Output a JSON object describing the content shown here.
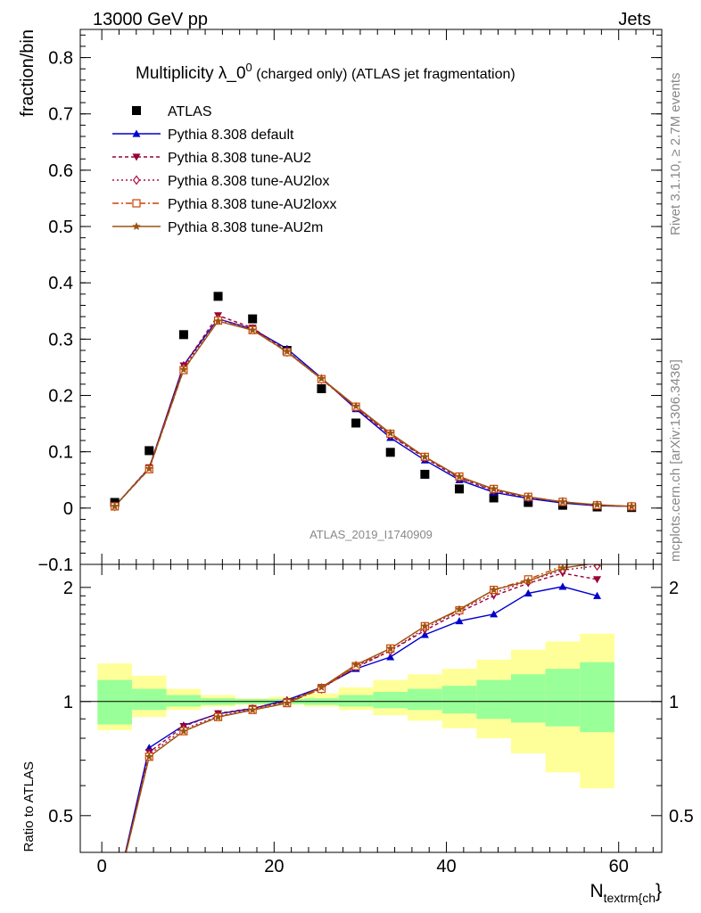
{
  "header": {
    "left": "13000 GeV pp",
    "right": "Jets"
  },
  "side": {
    "rivet": "Rivet 3.1.10, ≥ 2.7M events",
    "mcplots": "mcplots.cern.ch [arXiv:1306.3436]"
  },
  "watermark": "ATLAS_2019_I1740909",
  "chart_data": [
    {
      "type": "line",
      "title": "Multiplicity λ_0",
      "title_sup": "0",
      "title_suffix": " (charged only) (ATLAS jet fragmentation)",
      "ylabel": "fraction/bin",
      "xlabel": "",
      "xlim": [
        -2.5,
        65
      ],
      "ylim": [
        -0.1,
        0.85
      ],
      "yticks": [
        -0.1,
        0,
        0.1,
        0.2,
        0.3,
        0.4,
        0.5,
        0.6,
        0.7,
        0.8
      ],
      "ytick_labels": [
        "−0.1",
        "0",
        "0.1",
        "0.2",
        "0.3",
        "0.4",
        "0.5",
        "0.6",
        "0.7",
        "0.8"
      ],
      "x": [
        1.5,
        5.5,
        9.5,
        13.5,
        17.5,
        21.5,
        25.5,
        29.5,
        33.5,
        37.5,
        41.5,
        45.5,
        49.5,
        53.5,
        57.5,
        61.5
      ],
      "series": [
        {
          "name": "ATLAS",
          "color": "#000000",
          "marker": "square",
          "dash": "none",
          "values": [
            0.01,
            0.102,
            0.308,
            0.376,
            0.336,
            0.28,
            0.212,
            0.151,
            0.099,
            0.06,
            0.034,
            0.018,
            0.01,
            0.005,
            0.002,
            0.001
          ]
        },
        {
          "name": "Pythia 8.308 default",
          "color": "#0000cc",
          "marker": "triangle",
          "dash": "none",
          "values": [
            0.003,
            0.071,
            0.254,
            0.336,
            0.318,
            0.283,
            0.231,
            0.176,
            0.125,
            0.085,
            0.05,
            0.028,
            0.017,
            0.009,
            0.004,
            0.003
          ]
        },
        {
          "name": "Pythia 8.308 tune-AU2",
          "color": "#990033",
          "marker": "triangledown",
          "dash": "4,3",
          "values": [
            0.003,
            0.072,
            0.253,
            0.342,
            0.32,
            0.279,
            0.229,
            0.178,
            0.129,
            0.089,
            0.053,
            0.031,
            0.019,
            0.011,
            0.005,
            0.003
          ]
        },
        {
          "name": "Pythia 8.308 tune-AU2lox",
          "color": "#aa1144",
          "marker": "diamond",
          "dash": "2,3",
          "values": [
            0.003,
            0.07,
            0.249,
            0.336,
            0.318,
            0.277,
            0.229,
            0.179,
            0.13,
            0.09,
            0.054,
            0.032,
            0.019,
            0.011,
            0.005,
            0.003
          ]
        },
        {
          "name": "Pythia 8.308 tune-AU2loxx",
          "color": "#cc4400",
          "marker": "squareopen",
          "dash": "7,3,2,3",
          "values": [
            0.003,
            0.069,
            0.245,
            0.333,
            0.316,
            0.277,
            0.229,
            0.18,
            0.132,
            0.091,
            0.056,
            0.034,
            0.02,
            0.011,
            0.005,
            0.003
          ]
        },
        {
          "name": "Pythia 8.308 tune-AU2m",
          "color": "#995511",
          "marker": "star",
          "dash": "none",
          "values": [
            0.003,
            0.07,
            0.246,
            0.332,
            0.316,
            0.278,
            0.23,
            0.181,
            0.133,
            0.091,
            0.056,
            0.034,
            0.02,
            0.011,
            0.006,
            0.003
          ]
        }
      ]
    },
    {
      "type": "line",
      "title": "",
      "ylabel": "Ratio to ATLAS",
      "xlabel": "N_textrm{ch}",
      "xlabel_main": "N",
      "xlabel_sub": "textrm{ch",
      "xlabel_tail": "}",
      "xlim": [
        -2.5,
        65
      ],
      "ylim": [
        0.4,
        2.3
      ],
      "xticks": [
        0,
        20,
        40,
        60
      ],
      "xtick_labels": [
        "0",
        "20",
        "40",
        "60"
      ],
      "yticks": [
        0.5,
        1,
        2
      ],
      "ytick_labels": [
        "0.5",
        "1",
        "2"
      ],
      "bins": [
        [
          -0.5,
          3.5
        ],
        [
          3.5,
          7.5
        ],
        [
          7.5,
          11.5
        ],
        [
          11.5,
          15.5
        ],
        [
          15.5,
          19.5
        ],
        [
          19.5,
          23.5
        ],
        [
          23.5,
          27.5
        ],
        [
          27.5,
          31.5
        ],
        [
          31.5,
          35.5
        ],
        [
          35.5,
          39.5
        ],
        [
          39.5,
          43.5
        ],
        [
          43.5,
          47.5
        ],
        [
          47.5,
          51.5
        ],
        [
          51.5,
          55.5
        ],
        [
          55.5,
          59.5
        ]
      ],
      "band_inner": [
        [
          0.87,
          1.14
        ],
        [
          0.95,
          1.08
        ],
        [
          0.97,
          1.04
        ],
        [
          0.98,
          1.02
        ],
        [
          0.985,
          1.015
        ],
        [
          0.985,
          1.015
        ],
        [
          0.98,
          1.02
        ],
        [
          0.97,
          1.04
        ],
        [
          0.96,
          1.06
        ],
        [
          0.95,
          1.08
        ],
        [
          0.93,
          1.1
        ],
        [
          0.9,
          1.14
        ],
        [
          0.88,
          1.18
        ],
        [
          0.86,
          1.22
        ],
        [
          0.83,
          1.27
        ]
      ],
      "band_outer": [
        [
          0.84,
          1.26
        ],
        [
          0.91,
          1.17
        ],
        [
          0.95,
          1.08
        ],
        [
          0.97,
          1.04
        ],
        [
          0.98,
          1.02
        ],
        [
          0.98,
          1.03
        ],
        [
          0.97,
          1.05
        ],
        [
          0.95,
          1.09
        ],
        [
          0.92,
          1.14
        ],
        [
          0.89,
          1.18
        ],
        [
          0.85,
          1.22
        ],
        [
          0.8,
          1.29
        ],
        [
          0.73,
          1.37
        ],
        [
          0.65,
          1.44
        ],
        [
          0.59,
          1.51
        ]
      ],
      "x": [
        1.5,
        5.5,
        9.5,
        13.5,
        17.5,
        21.5,
        25.5,
        29.5,
        33.5,
        37.5,
        41.5,
        45.5,
        49.5,
        53.5,
        57.5
      ],
      "series": [
        {
          "name": "Pythia 8.308 default",
          "color": "#0000cc",
          "marker": "triangle",
          "dash": "none",
          "values": [
            0.3,
            0.755,
            0.865,
            0.928,
            0.958,
            1.01,
            1.09,
            1.22,
            1.31,
            1.5,
            1.63,
            1.7,
            1.93,
            2.01,
            1.9
          ]
        },
        {
          "name": "Pythia 8.308 tune-AU2",
          "color": "#990033",
          "marker": "triangledown",
          "dash": "4,3",
          "values": [
            0.3,
            0.735,
            0.86,
            0.93,
            0.96,
            1.0,
            1.09,
            1.23,
            1.36,
            1.54,
            1.72,
            1.9,
            2.05,
            2.18,
            2.1
          ]
        },
        {
          "name": "Pythia 8.308 tune-AU2lox",
          "color": "#aa1144",
          "marker": "diamond",
          "dash": "2,3",
          "values": [
            0.3,
            0.725,
            0.845,
            0.915,
            0.955,
            1.0,
            1.08,
            1.24,
            1.36,
            1.56,
            1.74,
            1.93,
            2.08,
            2.22,
            2.28
          ]
        },
        {
          "name": "Pythia 8.308 tune-AU2loxx",
          "color": "#cc4400",
          "marker": "squareopen",
          "dash": "7,3,2,3",
          "values": [
            0.3,
            0.715,
            0.835,
            0.91,
            0.95,
            0.99,
            1.08,
            1.24,
            1.38,
            1.58,
            1.74,
            1.97,
            2.1,
            2.28,
            2.38
          ]
        },
        {
          "name": "Pythia 8.308 tune-AU2m",
          "color": "#995511",
          "marker": "star",
          "dash": "none",
          "values": [
            0.3,
            0.715,
            0.835,
            0.91,
            0.95,
            0.99,
            1.09,
            1.25,
            1.38,
            1.58,
            1.75,
            1.97,
            2.08,
            2.25,
            2.32
          ]
        }
      ]
    }
  ]
}
